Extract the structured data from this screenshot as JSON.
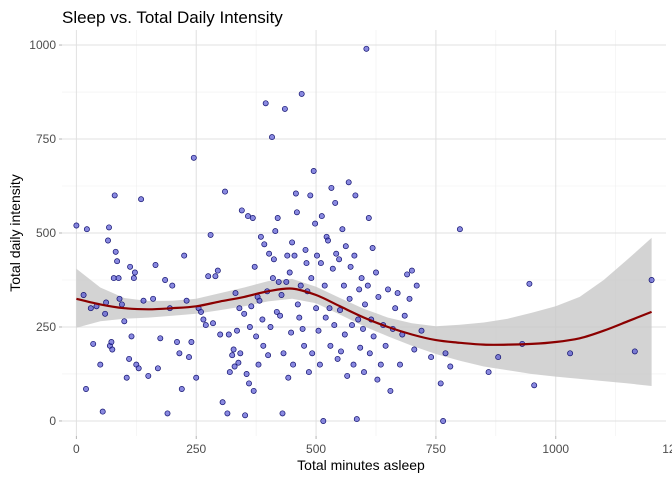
{
  "chart_data": {
    "type": "scatter",
    "title": "Sleep vs. Total Daily Intensity",
    "xlabel": "Total minutes asleep",
    "ylabel": "Total daily intensity",
    "xlim": [
      -30,
      1230
    ],
    "ylim": [
      -40,
      1040
    ],
    "x_ticks": [
      0,
      250,
      500,
      750,
      1000,
      1250
    ],
    "y_ticks": [
      0,
      250,
      500,
      750,
      1000
    ],
    "grid": true,
    "colors": {
      "points_fill": "#4a4acf",
      "points_stroke": "#10106e",
      "smooth_line": "#8b0000",
      "ribbon": "#c8c8c8",
      "grid_major": "#e0e0e0",
      "grid_minor": "#efefef"
    },
    "points": [
      [
        0,
        520
      ],
      [
        15,
        335
      ],
      [
        20,
        85
      ],
      [
        22,
        510
      ],
      [
        30,
        300
      ],
      [
        35,
        205
      ],
      [
        42,
        305
      ],
      [
        50,
        150
      ],
      [
        55,
        25
      ],
      [
        60,
        285
      ],
      [
        62,
        315
      ],
      [
        66,
        480
      ],
      [
        68,
        515
      ],
      [
        70,
        200
      ],
      [
        73,
        210
      ],
      [
        75,
        190
      ],
      [
        78,
        380
      ],
      [
        80,
        600
      ],
      [
        82,
        450
      ],
      [
        85,
        425
      ],
      [
        88,
        380
      ],
      [
        90,
        325
      ],
      [
        95,
        310
      ],
      [
        100,
        265
      ],
      [
        105,
        115
      ],
      [
        110,
        165
      ],
      [
        112,
        410
      ],
      [
        115,
        225
      ],
      [
        120,
        380
      ],
      [
        122,
        395
      ],
      [
        125,
        150
      ],
      [
        130,
        140
      ],
      [
        135,
        590
      ],
      [
        140,
        320
      ],
      [
        150,
        120
      ],
      [
        160,
        325
      ],
      [
        165,
        415
      ],
      [
        170,
        140
      ],
      [
        175,
        220
      ],
      [
        185,
        375
      ],
      [
        190,
        20
      ],
      [
        195,
        300
      ],
      [
        200,
        360
      ],
      [
        210,
        210
      ],
      [
        215,
        180
      ],
      [
        220,
        85
      ],
      [
        225,
        440
      ],
      [
        230,
        320
      ],
      [
        235,
        170
      ],
      [
        240,
        210
      ],
      [
        245,
        700
      ],
      [
        250,
        115
      ],
      [
        255,
        300
      ],
      [
        260,
        290
      ],
      [
        265,
        270
      ],
      [
        270,
        255
      ],
      [
        275,
        385
      ],
      [
        280,
        495
      ],
      [
        285,
        260
      ],
      [
        290,
        385
      ],
      [
        295,
        400
      ],
      [
        300,
        230
      ],
      [
        305,
        50
      ],
      [
        310,
        610
      ],
      [
        315,
        20
      ],
      [
        318,
        230
      ],
      [
        320,
        130
      ],
      [
        325,
        175
      ],
      [
        328,
        190
      ],
      [
        330,
        145
      ],
      [
        332,
        340
      ],
      [
        335,
        240
      ],
      [
        338,
        155
      ],
      [
        340,
        300
      ],
      [
        342,
        180
      ],
      [
        345,
        560
      ],
      [
        350,
        285
      ],
      [
        352,
        15
      ],
      [
        355,
        125
      ],
      [
        358,
        545
      ],
      [
        360,
        100
      ],
      [
        362,
        250
      ],
      [
        365,
        305
      ],
      [
        368,
        540
      ],
      [
        370,
        80
      ],
      [
        372,
        410
      ],
      [
        375,
        225
      ],
      [
        378,
        330
      ],
      [
        380,
        150
      ],
      [
        382,
        320
      ],
      [
        385,
        490
      ],
      [
        388,
        270
      ],
      [
        390,
        200
      ],
      [
        392,
        470
      ],
      [
        395,
        845
      ],
      [
        398,
        345
      ],
      [
        400,
        175
      ],
      [
        402,
        445
      ],
      [
        405,
        250
      ],
      [
        408,
        755
      ],
      [
        410,
        380
      ],
      [
        412,
        430
      ],
      [
        415,
        505
      ],
      [
        418,
        290
      ],
      [
        420,
        540
      ],
      [
        422,
        370
      ],
      [
        425,
        280
      ],
      [
        428,
        335
      ],
      [
        430,
        20
      ],
      [
        432,
        180
      ],
      [
        435,
        830
      ],
      [
        438,
        370
      ],
      [
        440,
        440
      ],
      [
        442,
        115
      ],
      [
        445,
        395
      ],
      [
        448,
        235
      ],
      [
        450,
        475
      ],
      [
        452,
        150
      ],
      [
        455,
        440
      ],
      [
        458,
        605
      ],
      [
        460,
        555
      ],
      [
        462,
        310
      ],
      [
        465,
        275
      ],
      [
        468,
        360
      ],
      [
        470,
        870
      ],
      [
        472,
        245
      ],
      [
        475,
        200
      ],
      [
        478,
        455
      ],
      [
        480,
        420
      ],
      [
        482,
        345
      ],
      [
        485,
        130
      ],
      [
        488,
        600
      ],
      [
        490,
        380
      ],
      [
        492,
        180
      ],
      [
        495,
        665
      ],
      [
        498,
        525
      ],
      [
        500,
        300
      ],
      [
        502,
        440
      ],
      [
        505,
        240
      ],
      [
        508,
        150
      ],
      [
        510,
        420
      ],
      [
        512,
        545
      ],
      [
        515,
        0
      ],
      [
        518,
        360
      ],
      [
        520,
        275
      ],
      [
        522,
        490
      ],
      [
        525,
        480
      ],
      [
        528,
        300
      ],
      [
        530,
        200
      ],
      [
        532,
        620
      ],
      [
        535,
        405
      ],
      [
        538,
        255
      ],
      [
        540,
        580
      ],
      [
        542,
        445
      ],
      [
        545,
        165
      ],
      [
        548,
        430
      ],
      [
        550,
        295
      ],
      [
        552,
        185
      ],
      [
        555,
        510
      ],
      [
        558,
        360
      ],
      [
        560,
        230
      ],
      [
        562,
        465
      ],
      [
        565,
        120
      ],
      [
        568,
        635
      ],
      [
        570,
        325
      ],
      [
        572,
        410
      ],
      [
        575,
        255
      ],
      [
        578,
        150
      ],
      [
        580,
        440
      ],
      [
        582,
        600
      ],
      [
        585,
        5
      ],
      [
        588,
        270
      ],
      [
        590,
        350
      ],
      [
        592,
        195
      ],
      [
        595,
        380
      ],
      [
        598,
        245
      ],
      [
        600,
        130
      ],
      [
        602,
        310
      ],
      [
        605,
        990
      ],
      [
        608,
        360
      ],
      [
        610,
        540
      ],
      [
        612,
        180
      ],
      [
        615,
        270
      ],
      [
        618,
        460
      ],
      [
        620,
        225
      ],
      [
        625,
        395
      ],
      [
        628,
        110
      ],
      [
        630,
        330
      ],
      [
        635,
        150
      ],
      [
        640,
        255
      ],
      [
        645,
        200
      ],
      [
        650,
        350
      ],
      [
        655,
        80
      ],
      [
        660,
        245
      ],
      [
        665,
        300
      ],
      [
        670,
        340
      ],
      [
        675,
        150
      ],
      [
        680,
        230
      ],
      [
        685,
        280
      ],
      [
        690,
        390
      ],
      [
        695,
        325
      ],
      [
        700,
        400
      ],
      [
        705,
        190
      ],
      [
        710,
        360
      ],
      [
        720,
        240
      ],
      [
        740,
        170
      ],
      [
        760,
        100
      ],
      [
        765,
        0
      ],
      [
        770,
        180
      ],
      [
        780,
        145
      ],
      [
        800,
        510
      ],
      [
        860,
        130
      ],
      [
        880,
        170
      ],
      [
        930,
        205
      ],
      [
        945,
        365
      ],
      [
        955,
        95
      ],
      [
        1030,
        180
      ],
      [
        1165,
        185
      ],
      [
        1200,
        375
      ]
    ],
    "smooth_x": [
      0,
      50,
      100,
      150,
      200,
      250,
      300,
      350,
      400,
      450,
      500,
      550,
      600,
      650,
      700,
      750,
      800,
      850,
      900,
      950,
      1000,
      1050,
      1100,
      1150,
      1200
    ],
    "smooth_y": [
      325,
      310,
      300,
      297,
      300,
      305,
      318,
      330,
      345,
      352,
      335,
      305,
      275,
      250,
      230,
      215,
      208,
      203,
      203,
      205,
      210,
      220,
      240,
      265,
      290
    ],
    "smooth_lower": [
      248,
      265,
      272,
      275,
      280,
      285,
      295,
      305,
      318,
      325,
      313,
      283,
      252,
      225,
      200,
      178,
      160,
      145,
      135,
      125,
      118,
      112,
      106,
      100,
      93
    ],
    "smooth_upper": [
      405,
      355,
      327,
      319,
      320,
      325,
      340,
      355,
      372,
      378,
      357,
      327,
      298,
      275,
      260,
      252,
      256,
      262,
      272,
      288,
      305,
      330,
      375,
      430,
      487
    ]
  }
}
